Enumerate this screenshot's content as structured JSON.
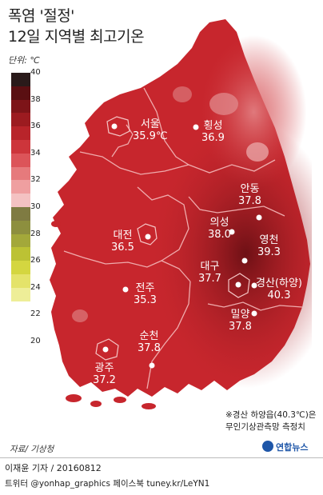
{
  "title_line1": "폭염 '절정'",
  "title_line2": "12일 지역별 최고기온",
  "unit_label": "단위: ℃",
  "legend": {
    "ticks": [
      "40",
      "38",
      "36",
      "34",
      "32",
      "30",
      "28",
      "26",
      "24",
      "22",
      "20"
    ],
    "colors": [
      "#2a1a1a",
      "#5a0f12",
      "#7d1418",
      "#9c1b20",
      "#b8242a",
      "#cd353b",
      "#dc5459",
      "#e67a7c",
      "#ef9fa0",
      "#f4c2c2",
      "#7f7b42",
      "#8d8f3e",
      "#a3a83a",
      "#bcc234",
      "#d4d640",
      "#e4e36a",
      "#eeee98"
    ]
  },
  "cities": [
    {
      "name": "서울",
      "value": "35.9℃"
    },
    {
      "name": "횡성",
      "value": "36.9"
    },
    {
      "name": "안동",
      "value": "37.8"
    },
    {
      "name": "의성",
      "value": "38.0"
    },
    {
      "name": "영천",
      "value": "39.3"
    },
    {
      "name": "대전",
      "value": "36.5"
    },
    {
      "name": "대구",
      "value": "37.7"
    },
    {
      "name": "경산(하양)",
      "value": "40.3"
    },
    {
      "name": "전주",
      "value": "35.3"
    },
    {
      "name": "밀양",
      "value": "37.8"
    },
    {
      "name": "순천",
      "value": "37.8"
    },
    {
      "name": "광주",
      "value": "37.2"
    }
  ],
  "note_line1": "※경산 하양읍(40.3℃)은",
  "note_line2": "무인기상관측망 측정치",
  "source": "자료/ 기상청",
  "credit_line1": "이재윤 기자 / 20160812",
  "credit_line2": "트위터 @yonhap_graphics  페이스북 tuney.kr/LeYN1",
  "logo_text": "연합뉴스"
}
